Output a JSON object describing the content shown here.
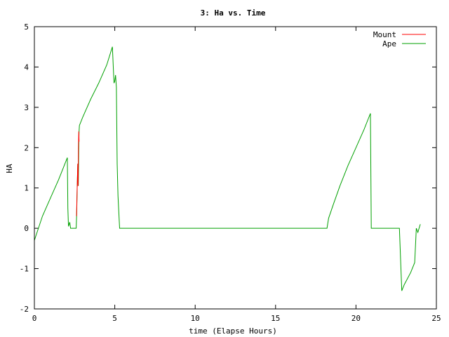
{
  "chart_data": {
    "type": "line",
    "title": "3: Ha vs. Time",
    "xlabel": "time (Elapse Hours)",
    "ylabel": "HA",
    "xlim": [
      0,
      25
    ],
    "ylim": [
      -2,
      5
    ],
    "xticks": [
      0,
      5,
      10,
      15,
      20,
      25
    ],
    "yticks": [
      -2,
      -1,
      0,
      1,
      2,
      3,
      4,
      5
    ],
    "grid": false,
    "legend_position": "top-right",
    "series": [
      {
        "name": "Mount",
        "color": "#ff0000",
        "x": [
          2.62,
          2.66,
          2.7,
          2.72,
          2.74,
          2.76,
          2.78
        ],
        "y": [
          0.3,
          1.0,
          1.6,
          1.05,
          2.0,
          2.4,
          2.15
        ]
      },
      {
        "name": "Ape",
        "color": "#00a000",
        "x": [
          0.0,
          0.5,
          1.0,
          1.5,
          2.05,
          2.08,
          2.12,
          2.2,
          2.25,
          2.3,
          2.35,
          2.6,
          2.63,
          2.66,
          2.7,
          2.73,
          2.76,
          2.78,
          2.8,
          3.0,
          3.5,
          4.0,
          4.5,
          4.85,
          4.95,
          5.0,
          5.05,
          5.1,
          5.15,
          5.2,
          5.3,
          10.0,
          15.0,
          18.2,
          18.3,
          18.6,
          19.0,
          19.5,
          20.0,
          20.5,
          20.9,
          20.95,
          21.0,
          22.0,
          22.7,
          22.85,
          23.0,
          23.4,
          23.65,
          23.75,
          23.85,
          24.0
        ],
        "y": [
          -0.3,
          0.3,
          0.75,
          1.2,
          1.75,
          0.5,
          0.05,
          0.15,
          0.0,
          0.0,
          0.0,
          0.0,
          0.35,
          1.0,
          1.6,
          1.05,
          2.0,
          2.4,
          2.55,
          2.75,
          3.2,
          3.6,
          4.05,
          4.5,
          3.6,
          3.65,
          3.8,
          3.5,
          1.6,
          0.8,
          0.0,
          0.0,
          0.0,
          0.0,
          0.25,
          0.6,
          1.05,
          1.55,
          2.0,
          2.45,
          2.85,
          0.0,
          0.0,
          0.0,
          0.0,
          -1.55,
          -1.4,
          -1.1,
          -0.85,
          0.0,
          -0.1,
          0.1
        ]
      }
    ]
  }
}
